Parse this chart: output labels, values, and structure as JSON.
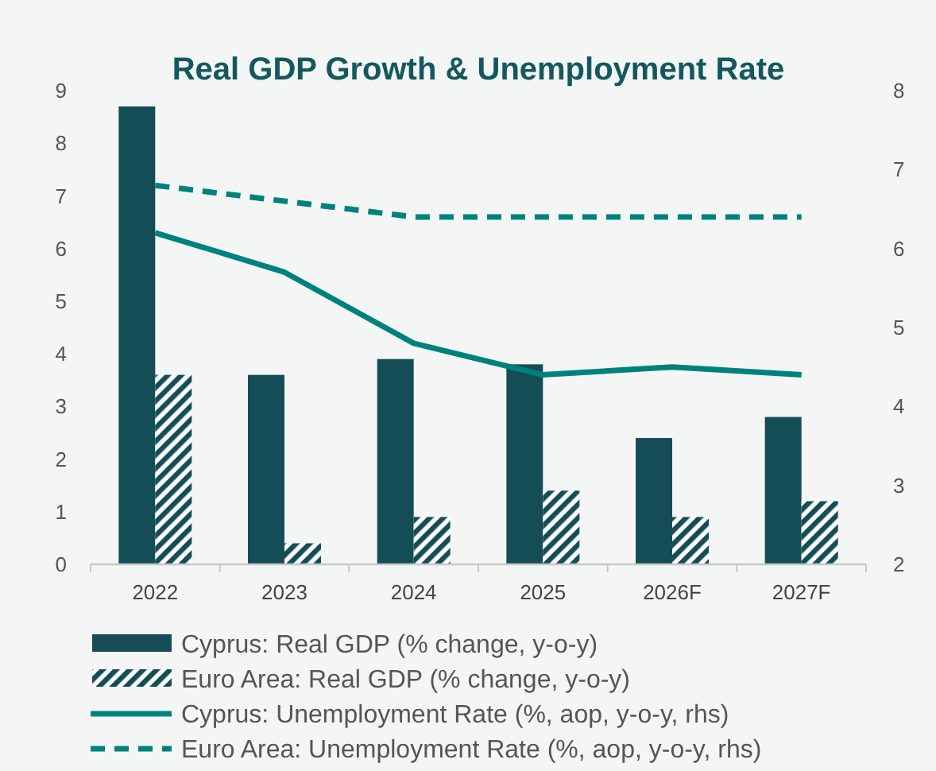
{
  "chart_data": {
    "type": "bar",
    "title": "Real GDP Growth & Unemployment Rate",
    "categories": [
      "2022",
      "2023",
      "2024",
      "2025",
      "2026F",
      "2027F"
    ],
    "series": [
      {
        "name": "Cyprus: Real GDP (% change, y-o-y)",
        "color": "#154d57",
        "values": [
          8.7,
          3.6,
          3.9,
          3.8,
          2.4,
          2.8
        ]
      },
      {
        "name": "Euro Area: Real GDP (% change, y-o-y)",
        "color": "#154d57",
        "values": [
          3.6,
          0.4,
          0.9,
          1.4,
          0.9,
          1.2
        ]
      },
      {
        "name": "Cyprus: Unemployment Rate (%, aop, y-o-y, rhs)",
        "type": "line",
        "axis": "y2",
        "color": "#00827c",
        "values": [
          6.2,
          5.7,
          4.8,
          4.4,
          4.5,
          4.4
        ]
      },
      {
        "name": "Euro Area: Unemployment Rate (%, aop, y-o-y, rhs)",
        "type": "line",
        "axis": "y2",
        "color": "#00827c",
        "line_style": "dashed",
        "values": [
          6.8,
          6.6,
          6.4,
          6.4,
          6.4,
          6.4
        ]
      }
    ],
    "ylim": [
      0,
      9
    ],
    "yticks": [
      0,
      1,
      2,
      3,
      4,
      5,
      6,
      7,
      8,
      9
    ],
    "y2lim": [
      2,
      8
    ],
    "y2ticks": [
      2,
      3,
      4,
      5,
      6,
      7,
      8
    ],
    "legend": "bottom"
  }
}
